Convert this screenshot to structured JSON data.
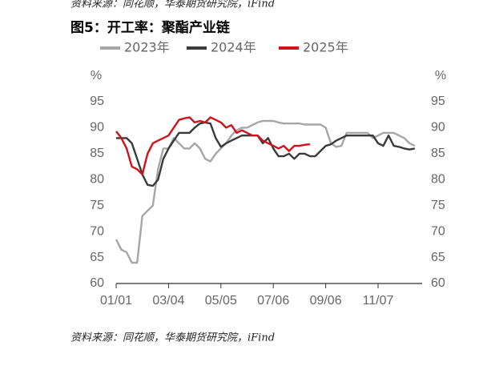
{
  "chart_data": {
    "type": "line",
    "source_top": "资料来源：同花顺，华泰期货研究院，iFind",
    "title": "图5：开工率：聚酯产业链",
    "y_label": "%",
    "y2_label": "%",
    "categories": [
      "01/01",
      null,
      null,
      null,
      null,
      null,
      null,
      null,
      null,
      null,
      "03/04",
      null,
      null,
      null,
      null,
      null,
      null,
      null,
      null,
      null,
      "05/05",
      null,
      null,
      null,
      null,
      null,
      null,
      null,
      null,
      null,
      "07/06",
      null,
      null,
      null,
      null,
      null,
      null,
      null,
      null,
      null,
      "09/06",
      null,
      null,
      null,
      null,
      null,
      null,
      null,
      null,
      null,
      "11/07",
      null,
      null,
      null,
      null,
      null,
      null,
      null
    ],
    "series": [
      {
        "name": "2023年",
        "color": "#a6a6a6",
        "values": [
          68.5,
          66.5,
          66,
          64,
          64,
          73,
          74,
          75,
          82,
          86,
          86,
          88,
          87,
          86,
          86,
          87,
          86,
          84,
          83.5,
          85,
          86,
          87,
          88.5,
          89.5,
          90,
          90,
          90.5,
          91,
          91.3,
          91.3,
          91.3,
          91,
          90.8,
          90.8,
          90.8,
          90.8,
          90.6,
          90.6,
          90.6,
          90.6,
          90,
          87,
          86.3,
          86.5,
          89,
          89,
          89,
          89,
          89,
          88,
          88.5,
          89,
          89,
          89,
          88.5,
          88,
          87,
          86.5
        ]
      },
      {
        "name": "2024年",
        "color": "#3a3a3a",
        "values": [
          88,
          88,
          88,
          87,
          84,
          81,
          79,
          78.8,
          80,
          84,
          86,
          87.5,
          89,
          89,
          89,
          90,
          90.8,
          91,
          90.8,
          88,
          86.3,
          87,
          87.5,
          88,
          88.5,
          88.5,
          88.5,
          88.5,
          87,
          88,
          86,
          84.5,
          84.5,
          85,
          84,
          85,
          85,
          84.5,
          84.5,
          85.5,
          86.5,
          86.8,
          87.5,
          88,
          88.5,
          88.5,
          88.5,
          88.5,
          88.5,
          88.5,
          87,
          86.5,
          88.5,
          86.5,
          86.3,
          86,
          85.8,
          86
        ]
      },
      {
        "name": "2025年",
        "color": "#d0121b",
        "values": [
          89.3,
          88,
          86,
          82.5,
          82,
          81,
          85,
          87,
          87.5,
          88,
          88.5,
          90,
          91.5,
          91.8,
          92,
          91,
          91.3,
          91,
          92,
          91.5,
          91,
          90,
          90.5,
          89,
          89.5,
          89,
          88.5,
          88.5,
          87.5,
          87,
          86.5,
          86,
          86.5,
          85.5,
          86.5,
          86.5,
          86.7,
          86.8,
          null,
          null,
          null,
          null,
          null,
          null,
          null,
          null,
          null,
          null,
          null,
          null,
          null,
          null,
          null,
          null,
          null,
          null,
          null,
          null
        ]
      }
    ],
    "ylim": [
      60,
      95
    ],
    "yticks": [
      60,
      65,
      70,
      75,
      80,
      85,
      90,
      95
    ],
    "y2lim": [
      60,
      95
    ],
    "y2ticks": [
      60,
      65,
      70,
      75,
      80,
      85,
      90,
      95
    ],
    "grid": false,
    "source": "资料来源：同花顺，华泰期货研究院，iFind"
  }
}
